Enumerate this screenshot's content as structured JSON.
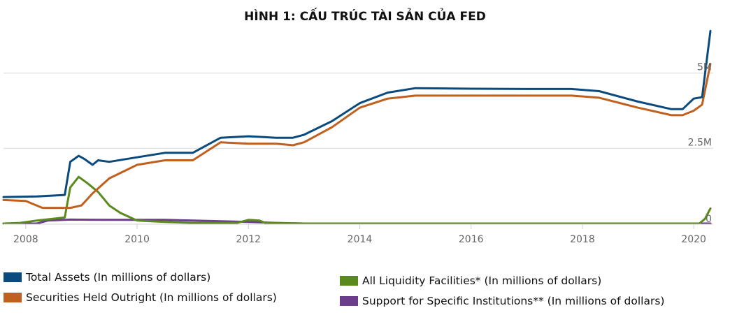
{
  "title": "HÌNH 1: CẤU TRÚC TÀI SẢN CỦA FED",
  "colors": {
    "total_assets": "#0b4a7d",
    "securities": "#c0601e",
    "liquidity": "#5a8a1c",
    "support": "#6b3d8a",
    "grid": "#d9d9d9",
    "axis_text": "#666666"
  },
  "legend": [
    {
      "label": "Total Assets (In millions of dollars)",
      "color": "#0b4a7d"
    },
    {
      "label": "Securities Held Outright (In millions of dollars)",
      "color": "#c0601e"
    },
    {
      "label": "All Liquidity Facilities* (In millions of dollars)",
      "color": "#5a8a1c"
    },
    {
      "label": "Support for Specific Institutions** (In millions of dollars)",
      "color": "#6b3d8a"
    }
  ],
  "chart_data": {
    "type": "line",
    "title": "HÌNH 1: CẤU TRÚC TÀI SẢN CỦA FED",
    "x_ticks": [
      "2008",
      "2010",
      "2012",
      "2014",
      "2016",
      "2018",
      "2020"
    ],
    "y_ticks": [
      "0",
      "2.5M",
      "5M"
    ],
    "xlim": [
      2007.6,
      2020.35
    ],
    "ylim": [
      0,
      6.5
    ],
    "grid": true,
    "legend_position": "bottom",
    "series": [
      {
        "name": "Total Assets (In millions of dollars)",
        "color": "#0b4a7d",
        "x": [
          2007.6,
          2008.2,
          2008.7,
          2008.8,
          2008.95,
          2009.05,
          2009.2,
          2009.3,
          2009.5,
          2010.0,
          2010.5,
          2011.0,
          2011.5,
          2012.0,
          2012.5,
          2012.8,
          2013.0,
          2013.5,
          2014.0,
          2014.5,
          2015.0,
          2016.0,
          2017.0,
          2017.8,
          2018.3,
          2019.0,
          2019.6,
          2019.8,
          2020.0,
          2020.15,
          2020.3
        ],
        "y": [
          0.88,
          0.9,
          0.95,
          2.05,
          2.25,
          2.15,
          1.95,
          2.1,
          2.05,
          2.2,
          2.35,
          2.35,
          2.85,
          2.9,
          2.85,
          2.85,
          2.95,
          3.4,
          4.0,
          4.35,
          4.5,
          4.48,
          4.47,
          4.47,
          4.4,
          4.05,
          3.8,
          3.8,
          4.15,
          4.2,
          6.4
        ]
      },
      {
        "name": "Securities Held Outright (In millions of dollars)",
        "color": "#c0601e",
        "x": [
          2007.6,
          2008.0,
          2008.3,
          2008.8,
          2009.0,
          2009.2,
          2009.5,
          2010.0,
          2010.5,
          2011.0,
          2011.5,
          2012.0,
          2012.5,
          2012.8,
          2013.0,
          2013.5,
          2014.0,
          2014.5,
          2015.0,
          2016.0,
          2017.0,
          2017.8,
          2018.3,
          2019.0,
          2019.6,
          2019.8,
          2020.0,
          2020.15,
          2020.3
        ],
        "y": [
          0.78,
          0.75,
          0.52,
          0.52,
          0.6,
          1.0,
          1.5,
          1.95,
          2.1,
          2.1,
          2.7,
          2.65,
          2.65,
          2.6,
          2.7,
          3.2,
          3.85,
          4.15,
          4.25,
          4.25,
          4.25,
          4.25,
          4.18,
          3.85,
          3.6,
          3.6,
          3.75,
          3.95,
          5.3
        ]
      },
      {
        "name": "All Liquidity Facilities* (In millions of dollars)",
        "color": "#5a8a1c",
        "x": [
          2007.6,
          2007.9,
          2008.2,
          2008.7,
          2008.8,
          2008.95,
          2009.1,
          2009.3,
          2009.5,
          2009.7,
          2010.0,
          2010.5,
          2011.0,
          2011.8,
          2012.0,
          2012.2,
          2012.3,
          2013.0,
          2020.1,
          2020.2,
          2020.3
        ],
        "y": [
          0.0,
          0.02,
          0.1,
          0.2,
          1.2,
          1.55,
          1.35,
          1.05,
          0.6,
          0.35,
          0.1,
          0.05,
          0.02,
          0.02,
          0.12,
          0.1,
          0.02,
          0.0,
          0.0,
          0.15,
          0.5
        ]
      },
      {
        "name": "Support for Specific Institutions** (In millions of dollars)",
        "color": "#6b3d8a",
        "x": [
          2007.6,
          2008.2,
          2008.4,
          2008.8,
          2009.5,
          2010.5,
          2011.0,
          2012.0,
          2012.5,
          2013.0,
          2020.3
        ],
        "y": [
          0.0,
          0.0,
          0.1,
          0.13,
          0.12,
          0.12,
          0.1,
          0.05,
          0.02,
          0.0,
          0.0
        ]
      }
    ]
  }
}
